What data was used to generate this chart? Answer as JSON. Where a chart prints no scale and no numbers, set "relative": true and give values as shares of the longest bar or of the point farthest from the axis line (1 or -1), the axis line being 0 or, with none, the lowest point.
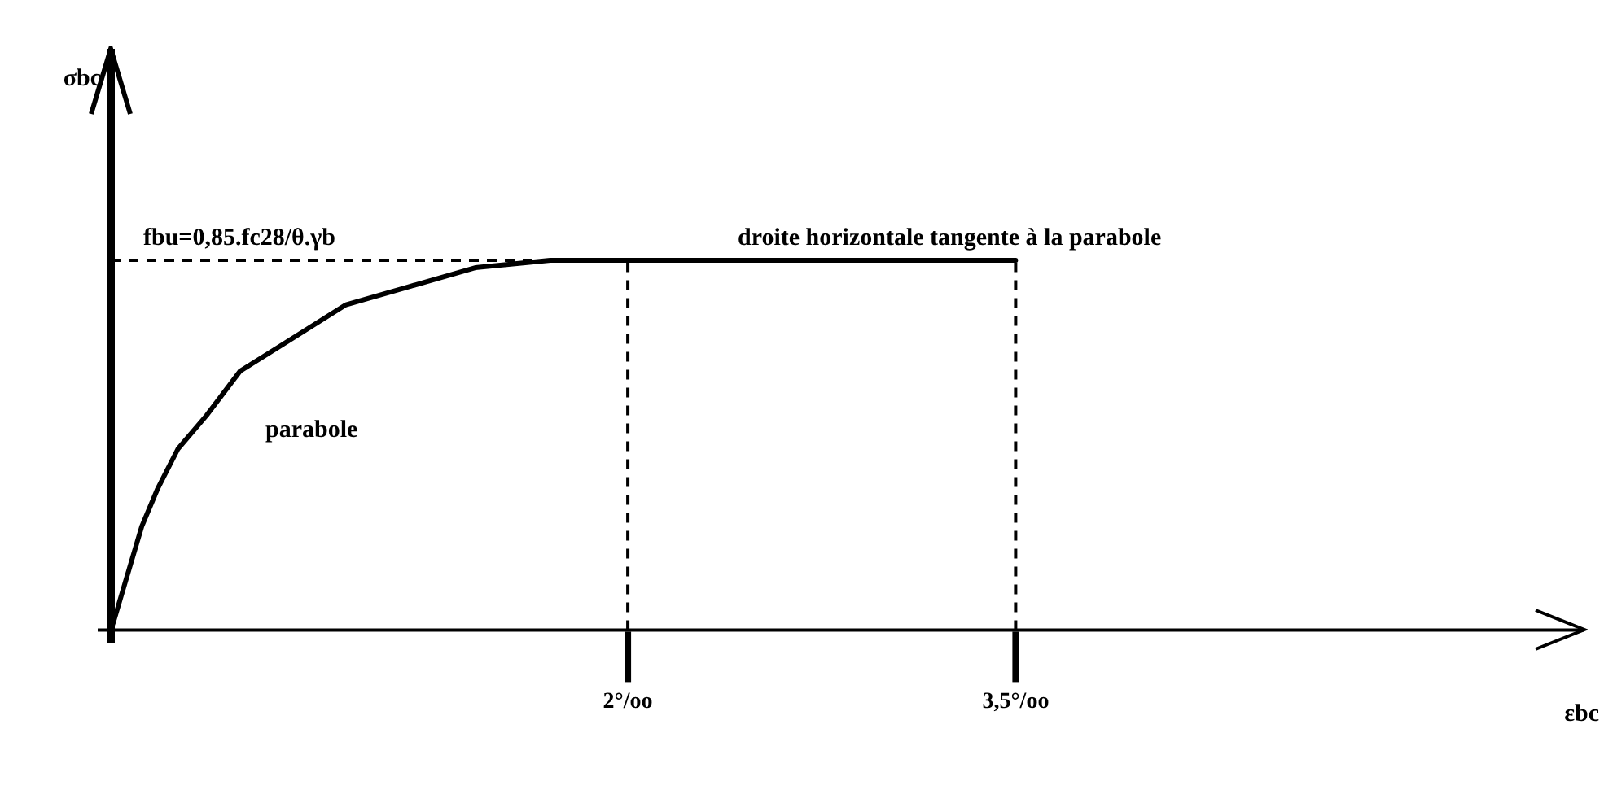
{
  "chart_data": {
    "type": "line",
    "xlabel": "εbc",
    "relative": true,
    "series": [
      {
        "color": "#000000",
        "x": [
          0,
          0.01,
          0.12,
          0.18,
          0.26,
          0.37,
          0.5,
          0.66,
          0.91,
          1.16,
          1.41,
          1.7,
          2,
          3.5
        ],
        "values": [
          0,
          0.02,
          0.28,
          0.38,
          0.49,
          0.58,
          0.7,
          0.77,
          0.88,
          0.93,
          0.98,
          1,
          1,
          1
        ]
      }
    ],
    "xlim": [
      0,
      5.7
    ],
    "xticks": [
      {
        "value": 2,
        "label": "2°/oo"
      },
      {
        "value": 3.5,
        "label": "3,5°/oo"
      }
    ],
    "tick_labels": "x",
    "grid": false,
    "legend": false,
    "marker": "none",
    "line_style": "solid",
    "ref_lines": [
      {
        "axis": "y",
        "value": 1,
        "line_style": "dashed",
        "color": "#000000"
      },
      {
        "axis": "x",
        "value": 2,
        "label": null,
        "line_style": "dashed",
        "color": "#000000"
      },
      {
        "axis": "x",
        "value": 3.5,
        "label": null,
        "line_style": "dashed",
        "color": "#000000"
      }
    ],
    "annotations": [
      "fbu=0,85.fc28/θ.γb",
      "parabole",
      "droite horizontale tangente à la parabole",
      "σbc"
    ]
  }
}
